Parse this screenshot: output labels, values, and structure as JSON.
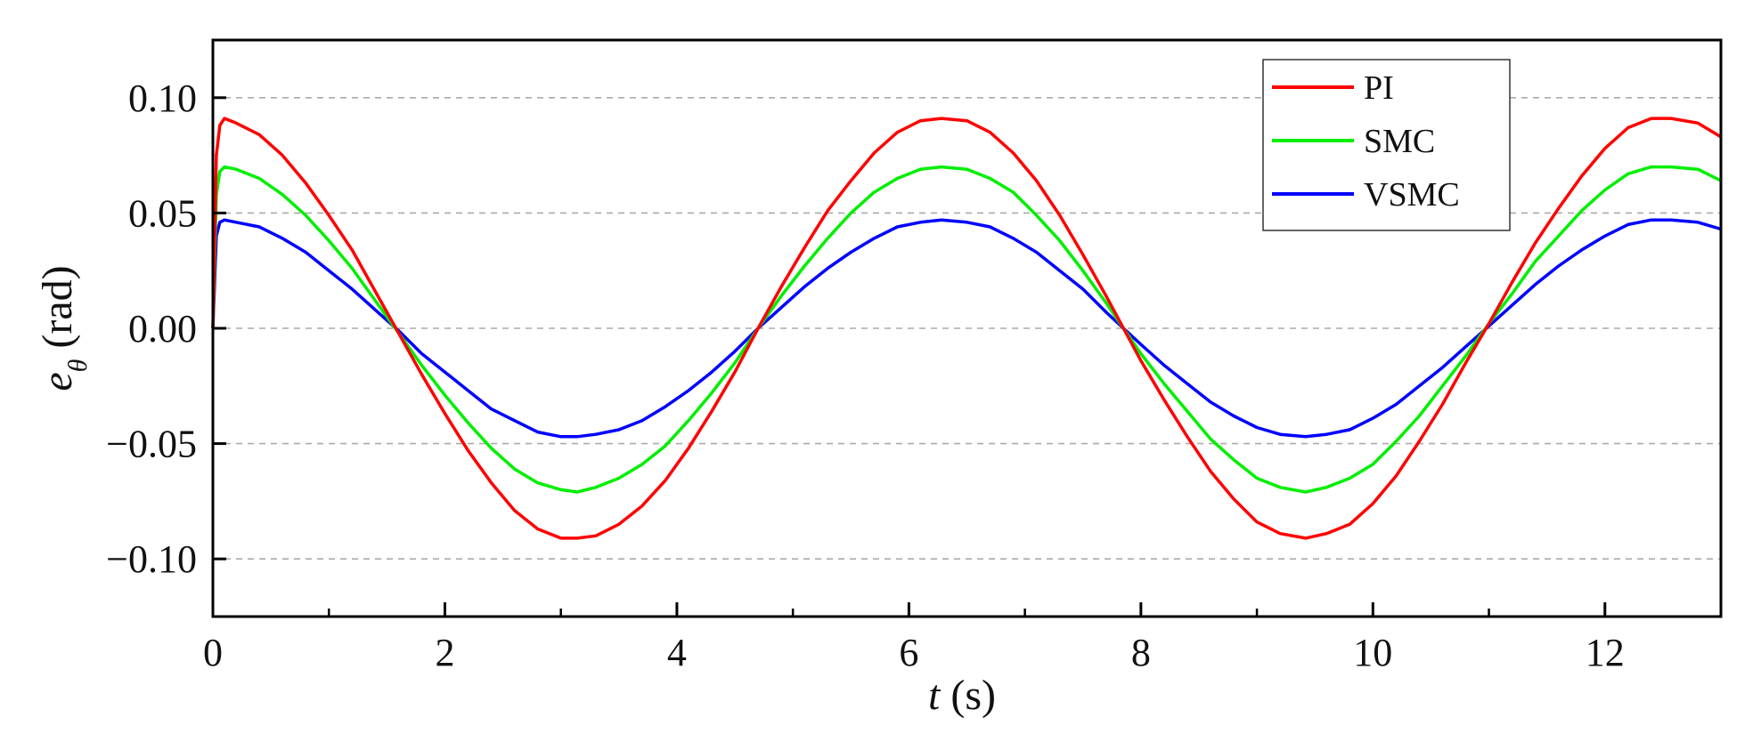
{
  "chart_data": {
    "type": "line",
    "title": "",
    "xlabel": {
      "var": "t",
      "unit": " (s)"
    },
    "ylabel": {
      "var": "e",
      "sub": "θ",
      "unit": " (rad)"
    },
    "xlim": [
      0,
      13
    ],
    "ylim": [
      -0.125,
      0.125
    ],
    "xticks": [
      0,
      2,
      4,
      6,
      8,
      10,
      12
    ],
    "xtick_labels": [
      "0",
      "2",
      "4",
      "6",
      "8",
      "10",
      "12"
    ],
    "yticks": [
      0.1,
      0.05,
      0.0,
      -0.05,
      -0.1
    ],
    "ytick_labels": [
      "0.10",
      "0.05",
      "0.00",
      "−0.05",
      "−0.10"
    ],
    "grid": "horizontal dashed",
    "legend_position": "top-right",
    "x": [
      0,
      0.03,
      0.06,
      0.1,
      0.2,
      0.4,
      0.6,
      0.8,
      1.0,
      1.2,
      1.4,
      1.6,
      1.8,
      2.0,
      2.2,
      2.4,
      2.6,
      2.8,
      3.0,
      3.14,
      3.3,
      3.5,
      3.7,
      3.9,
      4.1,
      4.3,
      4.5,
      4.7,
      4.9,
      5.1,
      5.3,
      5.5,
      5.7,
      5.9,
      6.1,
      6.28,
      6.5,
      6.7,
      6.9,
      7.1,
      7.3,
      7.5,
      7.7,
      7.85,
      8.0,
      8.2,
      8.4,
      8.6,
      8.8,
      9.0,
      9.2,
      9.42,
      9.6,
      9.8,
      10.0,
      10.2,
      10.4,
      10.6,
      10.8,
      11.0,
      11.2,
      11.4,
      11.6,
      11.8,
      12.0,
      12.2,
      12.4,
      12.57,
      12.8,
      13.0
    ],
    "series": [
      {
        "name": "PI",
        "color": "#ff0000",
        "values": [
          0.0,
          0.075,
          0.088,
          0.091,
          0.089,
          0.084,
          0.075,
          0.063,
          0.049,
          0.034,
          0.016,
          -0.002,
          -0.02,
          -0.037,
          -0.053,
          -0.067,
          -0.079,
          -0.087,
          -0.091,
          -0.091,
          -0.09,
          -0.085,
          -0.077,
          -0.066,
          -0.052,
          -0.036,
          -0.019,
          0.0,
          0.018,
          0.035,
          0.051,
          0.064,
          0.076,
          0.085,
          0.09,
          0.091,
          0.09,
          0.085,
          0.076,
          0.064,
          0.049,
          0.032,
          0.014,
          0.0,
          -0.014,
          -0.031,
          -0.047,
          -0.062,
          -0.074,
          -0.084,
          -0.089,
          -0.091,
          -0.089,
          -0.085,
          -0.076,
          -0.064,
          -0.049,
          -0.033,
          -0.015,
          0.002,
          0.02,
          0.037,
          0.052,
          0.066,
          0.078,
          0.087,
          0.091,
          0.091,
          0.089,
          0.083
        ]
      },
      {
        "name": "SMC",
        "color": "#00ee00",
        "values": [
          0.0,
          0.058,
          0.068,
          0.07,
          0.069,
          0.065,
          0.058,
          0.049,
          0.038,
          0.026,
          0.012,
          -0.002,
          -0.016,
          -0.029,
          -0.041,
          -0.052,
          -0.061,
          -0.067,
          -0.07,
          -0.071,
          -0.069,
          -0.065,
          -0.059,
          -0.051,
          -0.04,
          -0.028,
          -0.015,
          0.0,
          0.014,
          0.027,
          0.039,
          0.05,
          0.059,
          0.065,
          0.069,
          0.07,
          0.069,
          0.065,
          0.059,
          0.049,
          0.038,
          0.025,
          0.011,
          0.0,
          -0.011,
          -0.024,
          -0.036,
          -0.048,
          -0.057,
          -0.065,
          -0.069,
          -0.071,
          -0.069,
          -0.065,
          -0.059,
          -0.049,
          -0.038,
          -0.025,
          -0.012,
          0.002,
          0.015,
          0.029,
          0.04,
          0.051,
          0.06,
          0.067,
          0.07,
          0.07,
          0.069,
          0.064
        ]
      },
      {
        "name": "VSMC",
        "color": "#0000ff",
        "values": [
          0.0,
          0.04,
          0.046,
          0.047,
          0.046,
          0.044,
          0.039,
          0.033,
          0.025,
          0.017,
          0.008,
          -0.001,
          -0.011,
          -0.019,
          -0.027,
          -0.035,
          -0.04,
          -0.045,
          -0.047,
          -0.047,
          -0.046,
          -0.044,
          -0.04,
          -0.034,
          -0.027,
          -0.019,
          -0.01,
          0.0,
          0.009,
          0.018,
          0.026,
          0.033,
          0.039,
          0.044,
          0.046,
          0.047,
          0.046,
          0.044,
          0.039,
          0.033,
          0.025,
          0.017,
          0.007,
          0.0,
          -0.007,
          -0.016,
          -0.024,
          -0.032,
          -0.038,
          -0.043,
          -0.046,
          -0.047,
          -0.046,
          -0.044,
          -0.039,
          -0.033,
          -0.025,
          -0.017,
          -0.008,
          0.001,
          0.01,
          0.019,
          0.027,
          0.034,
          0.04,
          0.045,
          0.047,
          0.047,
          0.046,
          0.043
        ]
      }
    ]
  }
}
